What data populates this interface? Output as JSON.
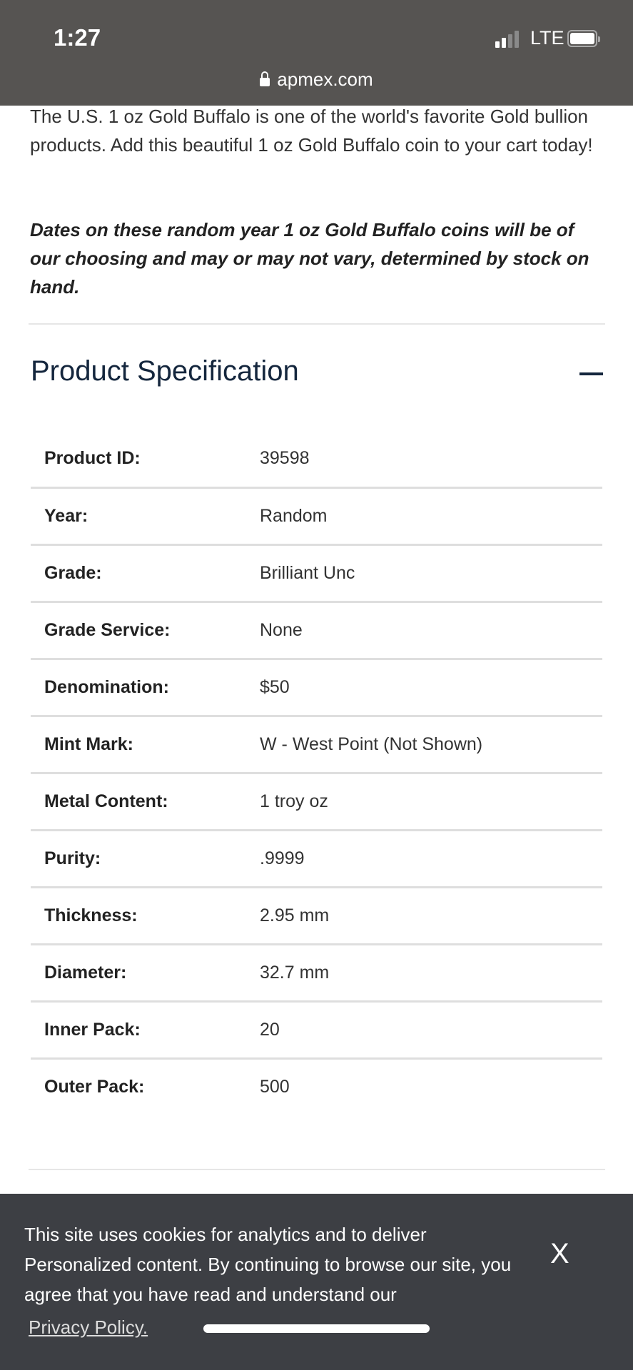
{
  "status_bar": {
    "time": "1:27",
    "network": "LTE",
    "signal_bars": 2,
    "signal_max": 4,
    "url": "apmex.com"
  },
  "description": {
    "text": "The U.S. 1 oz Gold Buffalo is one of the world's favorite Gold bullion products. Add this beautiful 1 oz Gold Buffalo coin to your cart today!",
    "note": "Dates on these random year 1 oz Gold Buffalo coins will be of our choosing and may or may not vary, determined by stock on hand."
  },
  "spec": {
    "title": "Product Specification",
    "toggle_icon": "minus-icon",
    "rows": [
      {
        "label": "Product ID:",
        "value": "39598"
      },
      {
        "label": "Year:",
        "value": "Random"
      },
      {
        "label": "Grade:",
        "value": "Brilliant Unc"
      },
      {
        "label": "Grade Service:",
        "value": "None"
      },
      {
        "label": "Denomination:",
        "value": "$50"
      },
      {
        "label": "Mint Mark:",
        "value": "W - West Point (Not Shown)"
      },
      {
        "label": "Metal Content:",
        "value": "1 troy oz"
      },
      {
        "label": "Purity:",
        "value": ".9999"
      },
      {
        "label": "Thickness:",
        "value": "2.95 mm"
      },
      {
        "label": "Diameter:",
        "value": "32.7 mm"
      },
      {
        "label": "Inner Pack:",
        "value": "20"
      },
      {
        "label": "Outer Pack:",
        "value": "500"
      }
    ]
  },
  "cookie_banner": {
    "text": "This site uses cookies for analytics and to deliver Personalized content. By continuing to browse our site, you agree that you have read and understand our",
    "link": "Privacy Policy.",
    "close": "X"
  }
}
